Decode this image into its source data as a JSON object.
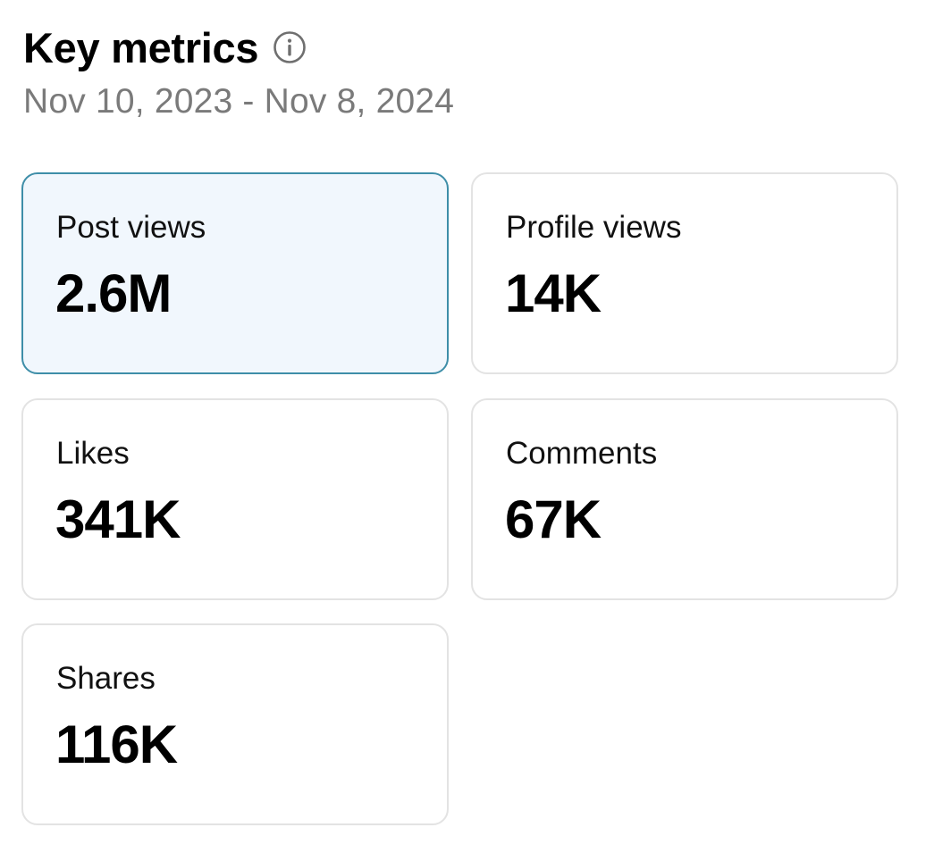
{
  "header": {
    "title": "Key metrics",
    "info_icon": "info-circle-icon",
    "date_range": "Nov 10, 2023 - Nov 8, 2024"
  },
  "metrics": [
    {
      "label": "Post views",
      "value": "2.6M",
      "selected": true
    },
    {
      "label": "Profile views",
      "value": "14K",
      "selected": false
    },
    {
      "label": "Likes",
      "value": "341K",
      "selected": false
    },
    {
      "label": "Comments",
      "value": "67K",
      "selected": false
    },
    {
      "label": "Shares",
      "value": "116K",
      "selected": false
    }
  ],
  "colors": {
    "selected_background": "#f1f7fd",
    "selected_border": "#3e8ea8",
    "card_border": "#e3e3e3",
    "muted_text": "#7a7a7a"
  }
}
